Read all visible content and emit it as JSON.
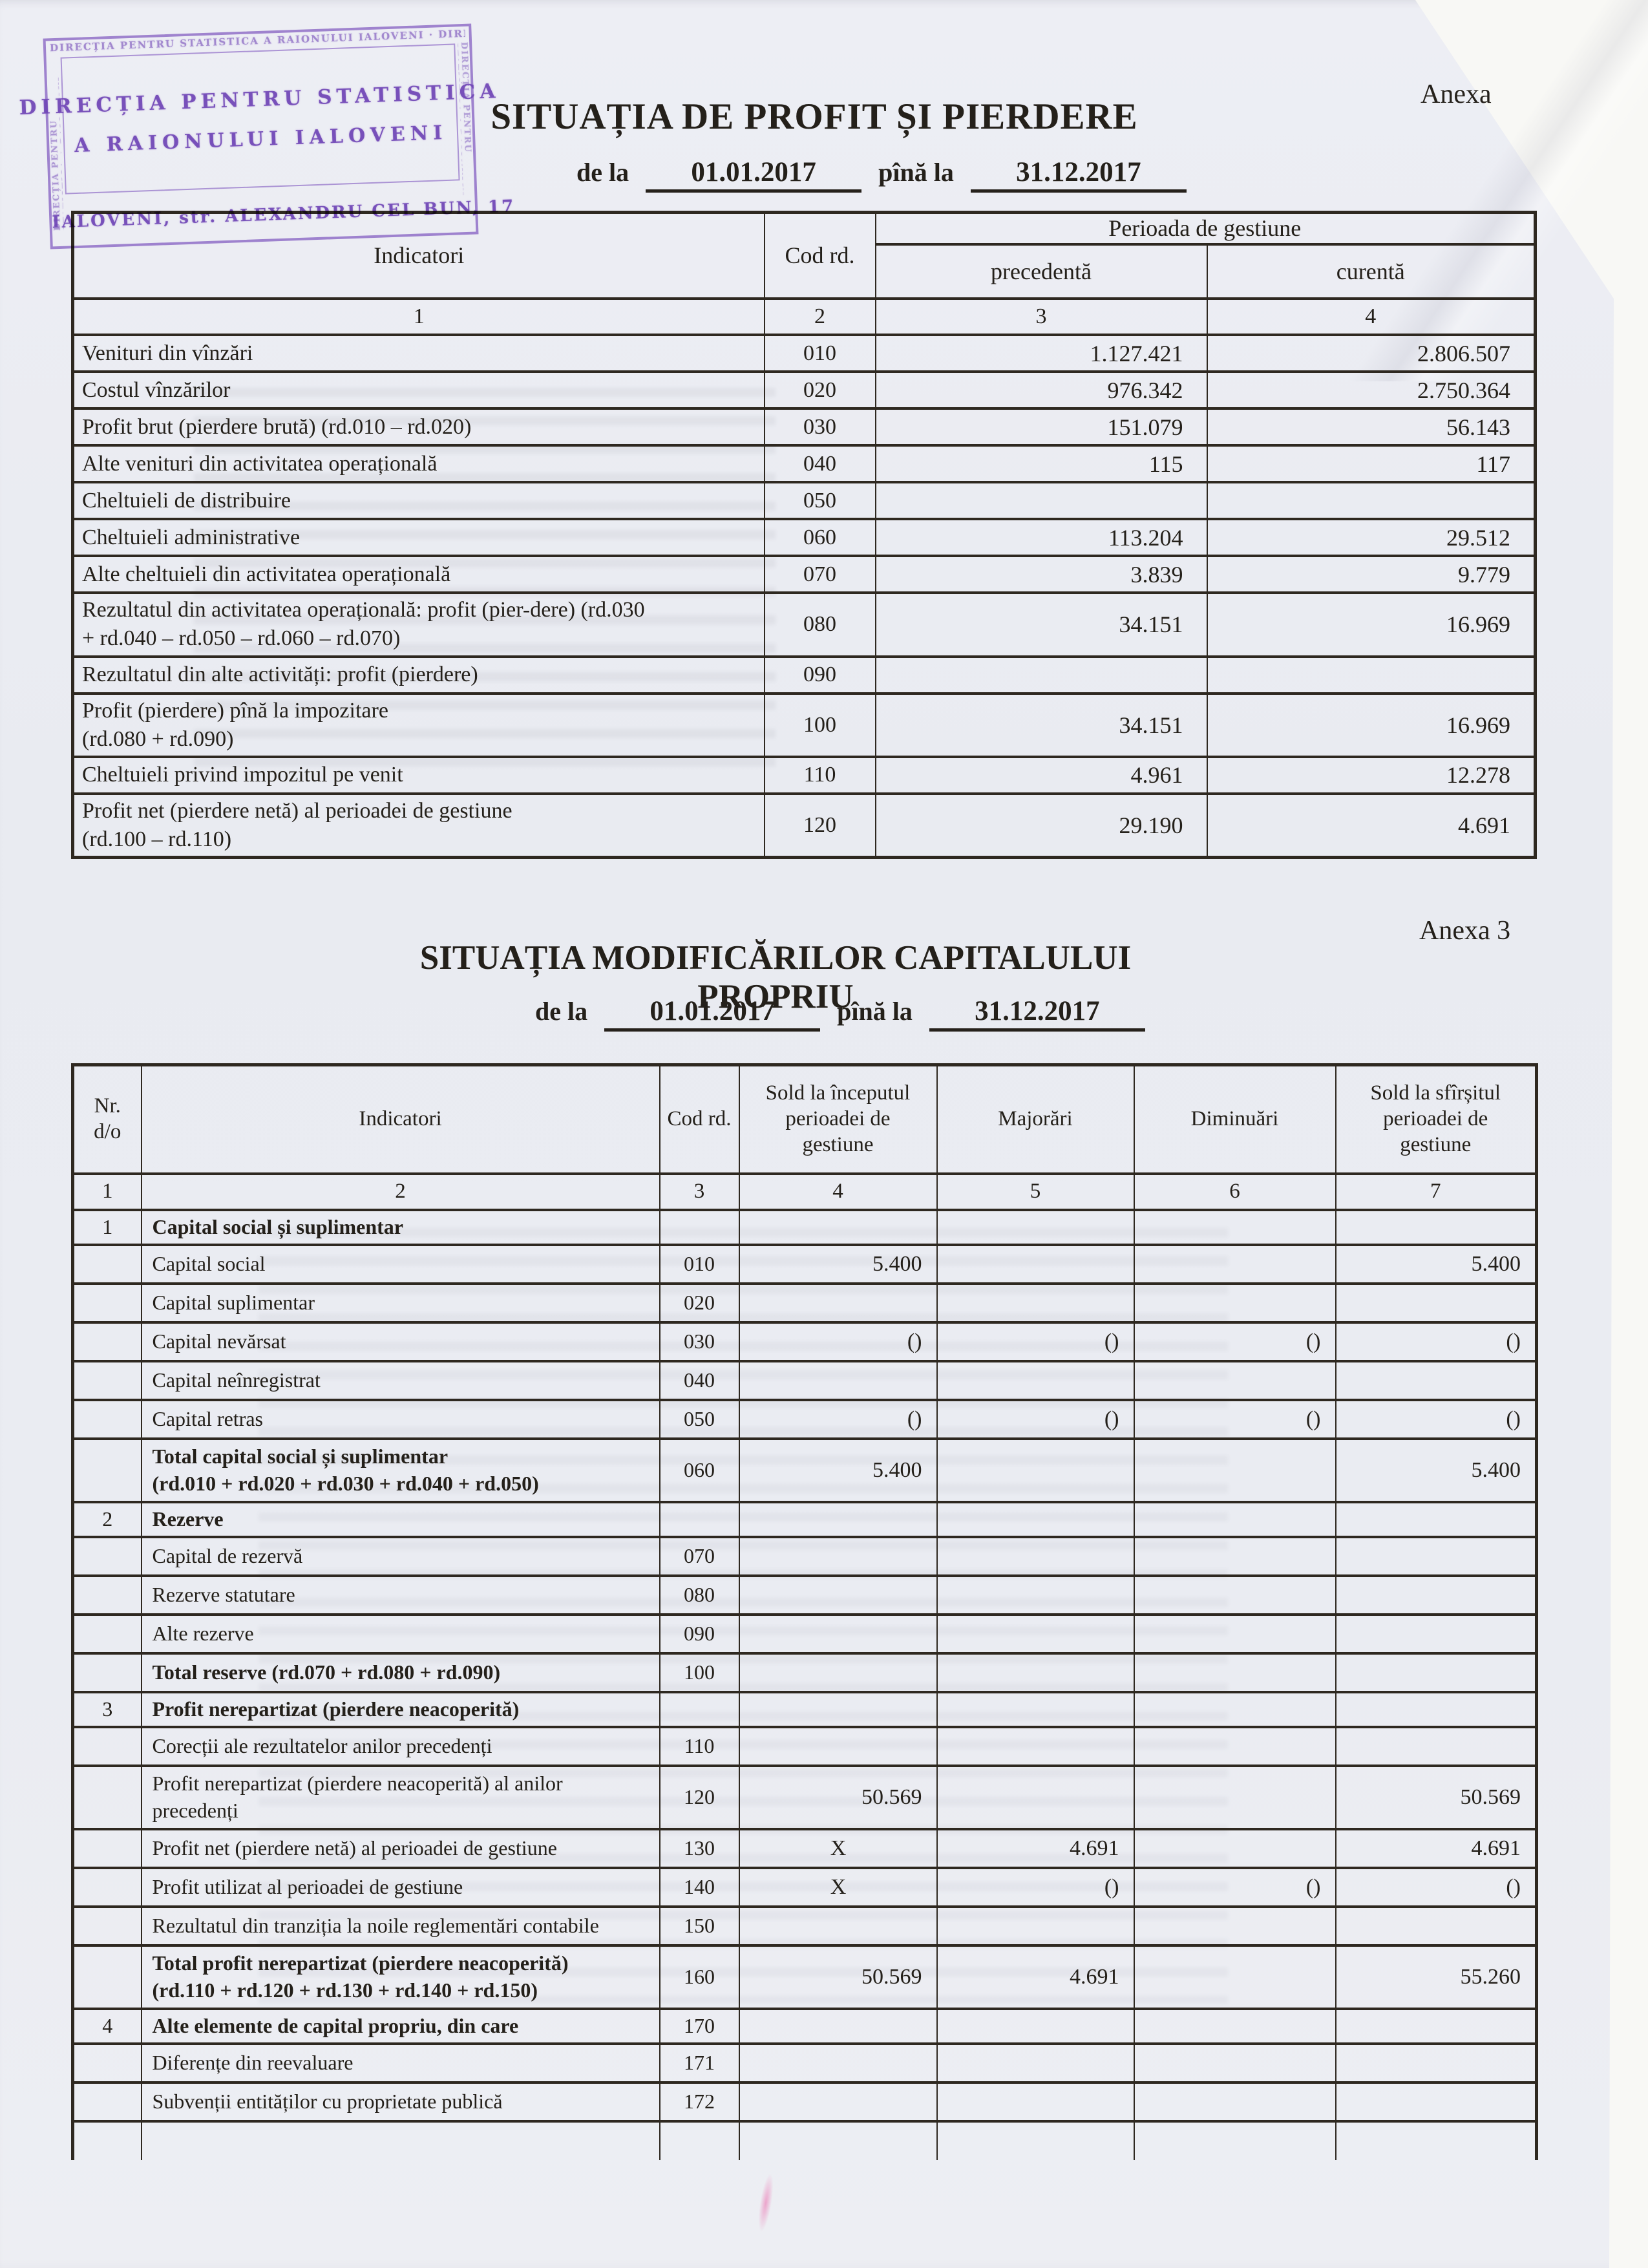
{
  "colors": {
    "paper": "#eaecf2",
    "ink": "#24201a",
    "stamp_purple": "#8a5ec9",
    "scanner_white": "#f8f8f5"
  },
  "anexa_top": "Anexa",
  "anexa_bottom": "Anexa 3",
  "stamp": {
    "line1": "DIRECȚIA PENTRU STATISTICA",
    "line2": "A RAIONULUI IALOVENI",
    "line3": "IALOVENI, str. ALEXANDRU CEL BUN, 17",
    "border_text": "DIRECȚIA PENTRU STATISTICA A RAIONULUI IALOVENI · DIRECȚIA PENTRU STATISTICA A RAIONULUI IALOVENI"
  },
  "report1": {
    "title": "SITUAȚIA DE PROFIT ȘI PIERDERE",
    "from_label": "de la",
    "from_value": "01.01.2017",
    "to_label": "pînă la",
    "to_value": "31.12.2017",
    "header": {
      "indicatori": "Indicatori",
      "cod": "Cod rd.",
      "period_group": "Perioada de gestiune",
      "prev": "precedentă",
      "curr": "curentă",
      "nums": [
        "1",
        "2",
        "3",
        "4"
      ]
    },
    "rows": [
      {
        "indicator": "Venituri din vînzări",
        "cod": "010",
        "prev": "1.127.421",
        "curr": "2.806.507",
        "tall": false
      },
      {
        "indicator": "Costul vînzărilor",
        "cod": "020",
        "prev": "976.342",
        "curr": "2.750.364",
        "tall": false
      },
      {
        "indicator": "Profit brut (pierdere brută)  (rd.010 – rd.020)",
        "cod": "030",
        "prev": "151.079",
        "curr": "56.143",
        "tall": false
      },
      {
        "indicator": "Alte venituri din activitatea operațională",
        "cod": "040",
        "prev": "115",
        "curr": "117",
        "tall": false
      },
      {
        "indicator": "Cheltuieli de distribuire",
        "cod": "050",
        "prev": "",
        "curr": "",
        "tall": false
      },
      {
        "indicator": "Cheltuieli administrative",
        "cod": "060",
        "prev": "113.204",
        "curr": "29.512",
        "tall": false
      },
      {
        "indicator": "Alte cheltuieli din activitatea operațională",
        "cod": "070",
        "prev": "3.839",
        "curr": "9.779",
        "tall": false
      },
      {
        "indicator": "Rezultatul din activitatea operațională: profit (pier-dere) (rd.030\n+ rd.040 – rd.050 – rd.060 – rd.070)",
        "cod": "080",
        "prev": "34.151",
        "curr": "16.969",
        "tall": true
      },
      {
        "indicator": "Rezultatul din alte activități: profit (pierdere)",
        "cod": "090",
        "prev": "",
        "curr": "",
        "tall": false
      },
      {
        "indicator": "Profit (pierdere) pînă la impozitare\n(rd.080 + rd.090)",
        "cod": "100",
        "prev": "34.151",
        "curr": "16.969",
        "tall": true
      },
      {
        "indicator": "Cheltuieli privind impozitul pe venit",
        "cod": "110",
        "prev": "4.961",
        "curr": "12.278",
        "tall": false
      },
      {
        "indicator": "Profit net (pierdere netă) al perioadei de gestiune\n(rd.100 – rd.110)",
        "cod": "120",
        "prev": "29.190",
        "curr": "4.691",
        "tall": true
      }
    ]
  },
  "report2": {
    "title": "SITUAȚIA MODIFICĂRILOR CAPITALULUI PROPRIU",
    "from_label": "de la",
    "from_value": "01.01.2017",
    "to_label": "pînă la",
    "to_value": "31.12.2017",
    "header": {
      "nr": "Nr.\nd/o",
      "indicatori": "Indicatori",
      "cod": "Cod rd.",
      "sold_start": "Sold la începutul\nperioadei  de\ngestiune",
      "majorari": "Majorări",
      "diminuari": "Diminuări",
      "sold_end": "Sold la sfîrșitul\nperioadei de\ngestiune",
      "nums": [
        "1",
        "2",
        "3",
        "4",
        "5",
        "6",
        "7"
      ]
    },
    "rows": [
      {
        "nr": "1",
        "indicator": "Capital social și suplimentar",
        "cod": "",
        "c4": "",
        "c5": "",
        "c6": "",
        "c7": "",
        "section": true,
        "bold": true,
        "tall": false
      },
      {
        "nr": "",
        "indicator": "Capital social",
        "cod": "010",
        "c4": "5.400",
        "c5": "",
        "c6": "",
        "c7": "5.400",
        "section": false,
        "bold": false,
        "tall": false
      },
      {
        "nr": "",
        "indicator": "Capital suplimentar",
        "cod": "020",
        "c4": "",
        "c5": "",
        "c6": "",
        "c7": "",
        "section": false,
        "bold": false,
        "tall": false
      },
      {
        "nr": "",
        "indicator": "Capital nevărsat",
        "cod": "030",
        "c4": "()",
        "c5": "()",
        "c6": "()",
        "c7": "()",
        "section": false,
        "bold": false,
        "tall": false
      },
      {
        "nr": "",
        "indicator": "Capital neînregistrat",
        "cod": "040",
        "c4": "",
        "c5": "",
        "c6": "",
        "c7": "",
        "section": false,
        "bold": false,
        "tall": false
      },
      {
        "nr": "",
        "indicator": "Capital retras",
        "cod": "050",
        "c4": "()",
        "c5": "()",
        "c6": "()",
        "c7": "()",
        "section": false,
        "bold": false,
        "tall": false
      },
      {
        "nr": "",
        "indicator": "Total capital social și suplimentar\n(rd.010 + rd.020 + rd.030 + rd.040 + rd.050)",
        "cod": "060",
        "c4": "5.400",
        "c5": "",
        "c6": "",
        "c7": "5.400",
        "section": false,
        "bold": true,
        "tall": true
      },
      {
        "nr": "2",
        "indicator": "Rezerve",
        "cod": "",
        "c4": "",
        "c5": "",
        "c6": "",
        "c7": "",
        "section": true,
        "bold": true,
        "tall": false
      },
      {
        "nr": "",
        "indicator": "Capital de rezervă",
        "cod": "070",
        "c4": "",
        "c5": "",
        "c6": "",
        "c7": "",
        "section": false,
        "bold": false,
        "tall": false
      },
      {
        "nr": "",
        "indicator": "Rezerve statutare",
        "cod": "080",
        "c4": "",
        "c5": "",
        "c6": "",
        "c7": "",
        "section": false,
        "bold": false,
        "tall": false
      },
      {
        "nr": "",
        "indicator": "Alte rezerve",
        "cod": "090",
        "c4": "",
        "c5": "",
        "c6": "",
        "c7": "",
        "section": false,
        "bold": false,
        "tall": false
      },
      {
        "nr": "",
        "indicator": "Total reserve (rd.070 + rd.080 + rd.090)",
        "cod": "100",
        "c4": "",
        "c5": "",
        "c6": "",
        "c7": "",
        "section": false,
        "bold": true,
        "tall": false
      },
      {
        "nr": "3",
        "indicator": "Profit nerepartizat (pierdere neacoperită)",
        "cod": "",
        "c4": "",
        "c5": "",
        "c6": "",
        "c7": "",
        "section": true,
        "bold": true,
        "tall": false
      },
      {
        "nr": "",
        "indicator": "Corecții ale rezultatelor anilor precedenți",
        "cod": "110",
        "c4": "",
        "c5": "",
        "c6": "",
        "c7": "",
        "section": false,
        "bold": false,
        "tall": false
      },
      {
        "nr": "",
        "indicator": "Profit nerepartizat (pierdere neacoperită) al anilor\nprecedenți",
        "cod": "120",
        "c4": "50.569",
        "c5": "",
        "c6": "",
        "c7": "50.569",
        "section": false,
        "bold": false,
        "tall": true
      },
      {
        "nr": "",
        "indicator": "Profit net (pierdere netă) al perioadei de gestiune",
        "cod": "130",
        "c4": "X",
        "c5": "4.691",
        "c6": "",
        "c7": "4.691",
        "section": false,
        "bold": false,
        "tall": false
      },
      {
        "nr": "",
        "indicator": "Profit utilizat al perioadei de gestiune",
        "cod": "140",
        "c4": "X",
        "c5": "()",
        "c6": "()",
        "c7": "()",
        "section": false,
        "bold": false,
        "tall": false
      },
      {
        "nr": "",
        "indicator": "Rezultatul din tranziția la noile reglementări contabile",
        "cod": "150",
        "c4": "",
        "c5": "",
        "c6": "",
        "c7": "",
        "section": false,
        "bold": false,
        "tall": false
      },
      {
        "nr": "",
        "indicator": "Total profit nerepartizat (pierdere neacoperită)\n(rd.110 + rd.120 + rd.130 + rd.140 + rd.150)",
        "cod": "160",
        "c4": "50.569",
        "c5": "4.691",
        "c6": "",
        "c7": "55.260",
        "section": false,
        "bold": true,
        "tall": true
      },
      {
        "nr": "4",
        "indicator": "Alte elemente de capital propriu, din care",
        "cod": "170",
        "c4": "",
        "c5": "",
        "c6": "",
        "c7": "",
        "section": true,
        "bold": true,
        "tall": false
      },
      {
        "nr": "",
        "indicator": "Diferențe din reevaluare",
        "cod": "171",
        "c4": "",
        "c5": "",
        "c6": "",
        "c7": "",
        "section": false,
        "bold": false,
        "tall": false
      },
      {
        "nr": "",
        "indicator": "Subvenții entităților cu proprietate publică",
        "cod": "172",
        "c4": "",
        "c5": "",
        "c6": "",
        "c7": "",
        "section": false,
        "bold": false,
        "tall": false
      }
    ]
  }
}
